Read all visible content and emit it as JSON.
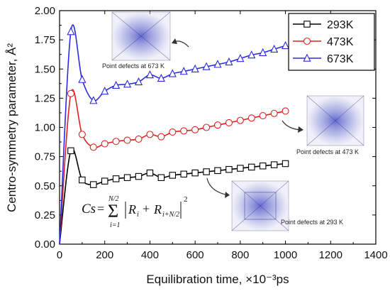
{
  "chart_data": {
    "type": "line",
    "xlabel": "Equilibration time, ×10⁻³ps",
    "ylabel": "Centro-symmetry parameter, Å²",
    "xlim": [
      0,
      1400
    ],
    "ylim": [
      0.0,
      2.0
    ],
    "x_ticks": [
      "0",
      "200",
      "400",
      "600",
      "800",
      "1000",
      "1200",
      "1400"
    ],
    "y_ticks": [
      "0.00",
      "0.25",
      "0.50",
      "0.75",
      "1.00",
      "1.25",
      "1.50",
      "1.75",
      "2.00"
    ],
    "grid": false,
    "legend_position": "top-right",
    "series": [
      {
        "name": "293K",
        "color": "#000000",
        "marker": "square",
        "x": [
          0,
          50,
          100,
          150,
          200,
          250,
          300,
          350,
          400,
          450,
          500,
          550,
          600,
          650,
          700,
          750,
          800,
          850,
          900,
          950,
          1000
        ],
        "y": [
          0.0,
          0.8,
          0.55,
          0.51,
          0.54,
          0.56,
          0.57,
          0.58,
          0.61,
          0.57,
          0.59,
          0.6,
          0.61,
          0.62,
          0.63,
          0.64,
          0.65,
          0.66,
          0.67,
          0.68,
          0.69
        ]
      },
      {
        "name": "473K",
        "color": "#e02020",
        "marker": "circle",
        "x": [
          0,
          50,
          100,
          150,
          200,
          250,
          300,
          350,
          400,
          450,
          500,
          550,
          600,
          650,
          700,
          750,
          800,
          850,
          900,
          950,
          1000
        ],
        "y": [
          0.0,
          1.29,
          0.94,
          0.83,
          0.86,
          0.88,
          0.89,
          0.9,
          0.94,
          0.92,
          0.96,
          0.97,
          0.98,
          1.0,
          1.02,
          1.04,
          1.06,
          1.08,
          1.1,
          1.12,
          1.14
        ]
      },
      {
        "name": "673K",
        "color": "#2a2ae0",
        "marker": "triangle",
        "x": [
          0,
          50,
          100,
          150,
          200,
          250,
          300,
          350,
          400,
          450,
          500,
          550,
          600,
          650,
          700,
          750,
          800,
          850,
          900,
          950,
          1000
        ],
        "y": [
          0.0,
          1.82,
          1.41,
          1.23,
          1.31,
          1.36,
          1.37,
          1.39,
          1.45,
          1.42,
          1.46,
          1.48,
          1.5,
          1.52,
          1.54,
          1.56,
          1.59,
          1.62,
          1.64,
          1.67,
          1.7
        ]
      }
    ],
    "annotations": [
      {
        "text": "Point defects at 673 K",
        "series": "673K"
      },
      {
        "text": "Point defects at 473 K",
        "series": "473K"
      },
      {
        "text": "Point defects at 293 K",
        "series": "293K"
      }
    ],
    "formula": {
      "lhs": "Cs",
      "upper_limit": "N/2",
      "lower_limit": "i=1",
      "body": "R",
      "sub1": "i",
      "plus": "+",
      "sub2": "i+N/2",
      "exponent": "2"
    }
  }
}
